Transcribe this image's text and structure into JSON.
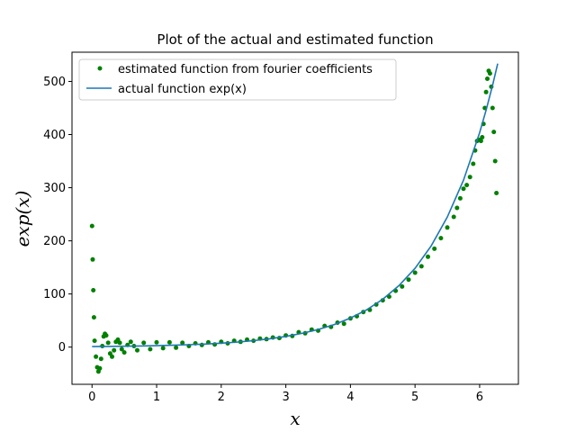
{
  "chart_data": {
    "type": "line",
    "title": "Plot of the actual and estimated function",
    "xlabel": "x",
    "ylabel": "exp(x)",
    "xlim": [
      -0.31,
      6.6
    ],
    "ylim": [
      -70,
      555
    ],
    "xticks": [
      0,
      1,
      2,
      3,
      4,
      5,
      6
    ],
    "yticks": [
      0,
      100,
      200,
      300,
      400,
      500
    ],
    "grid": false,
    "legend_position": "upper-left",
    "series": [
      {
        "name": "estimated function from fourier coefficients",
        "style": "dots",
        "color": "#008000",
        "x": [
          0.0,
          0.01,
          0.02,
          0.03,
          0.04,
          0.06,
          0.08,
          0.1,
          0.12,
          0.14,
          0.16,
          0.18,
          0.2,
          0.22,
          0.25,
          0.28,
          0.31,
          0.34,
          0.37,
          0.4,
          0.43,
          0.46,
          0.5,
          0.55,
          0.6,
          0.65,
          0.7,
          0.8,
          0.9,
          1.0,
          1.1,
          1.2,
          1.3,
          1.4,
          1.5,
          1.6,
          1.7,
          1.8,
          1.9,
          2.0,
          2.1,
          2.2,
          2.3,
          2.4,
          2.5,
          2.6,
          2.7,
          2.8,
          2.9,
          3.0,
          3.1,
          3.2,
          3.3,
          3.4,
          3.5,
          3.6,
          3.7,
          3.8,
          3.9,
          4.0,
          4.1,
          4.2,
          4.3,
          4.4,
          4.5,
          4.6,
          4.7,
          4.8,
          4.9,
          5.0,
          5.1,
          5.2,
          5.3,
          5.4,
          5.5,
          5.6,
          5.65,
          5.7,
          5.75,
          5.8,
          5.85,
          5.9,
          5.93,
          5.96,
          6.0,
          6.02,
          6.04,
          6.06,
          6.08,
          6.1,
          6.12,
          6.14,
          6.16,
          6.18,
          6.2,
          6.22,
          6.24,
          6.26
        ],
        "y": [
          228,
          165,
          107,
          56,
          12,
          -18,
          -38,
          -46,
          -40,
          -22,
          2,
          20,
          25,
          22,
          8,
          -12,
          -18,
          -6,
          10,
          14,
          8,
          -4,
          -10,
          4,
          10,
          2,
          -6,
          8,
          -4,
          9,
          -2,
          9,
          -1,
          8,
          2,
          7,
          4,
          9,
          5,
          10,
          7,
          12,
          10,
          14,
          12,
          16,
          15,
          18,
          17,
          22,
          21,
          28,
          26,
          33,
          31,
          40,
          38,
          46,
          44,
          54,
          58,
          66,
          70,
          80,
          88,
          95,
          106,
          114,
          127,
          140,
          152,
          170,
          185,
          205,
          225,
          245,
          262,
          280,
          298,
          305,
          320,
          345,
          370,
          388,
          390,
          388,
          395,
          420,
          450,
          480,
          505,
          520,
          515,
          490,
          450,
          405,
          350,
          290
        ]
      },
      {
        "name": "actual function exp(x)",
        "style": "line",
        "color": "#1f77b4",
        "x": [
          0.0,
          0.25,
          0.5,
          0.75,
          1.0,
          1.25,
          1.5,
          1.75,
          2.0,
          2.25,
          2.5,
          2.75,
          3.0,
          3.25,
          3.5,
          3.75,
          4.0,
          4.25,
          4.5,
          4.75,
          5.0,
          5.25,
          5.5,
          5.75,
          6.0,
          6.1,
          6.2,
          6.28
        ],
        "y": [
          1.0,
          1.28,
          1.65,
          2.12,
          2.72,
          3.49,
          4.48,
          5.75,
          7.39,
          9.49,
          12.18,
          15.64,
          20.09,
          25.79,
          33.12,
          42.52,
          54.6,
          70.11,
          90.02,
          115.58,
          148.41,
          190.57,
          244.69,
          314.19,
          403.43,
          445.86,
          492.75,
          533.5
        ]
      }
    ]
  }
}
